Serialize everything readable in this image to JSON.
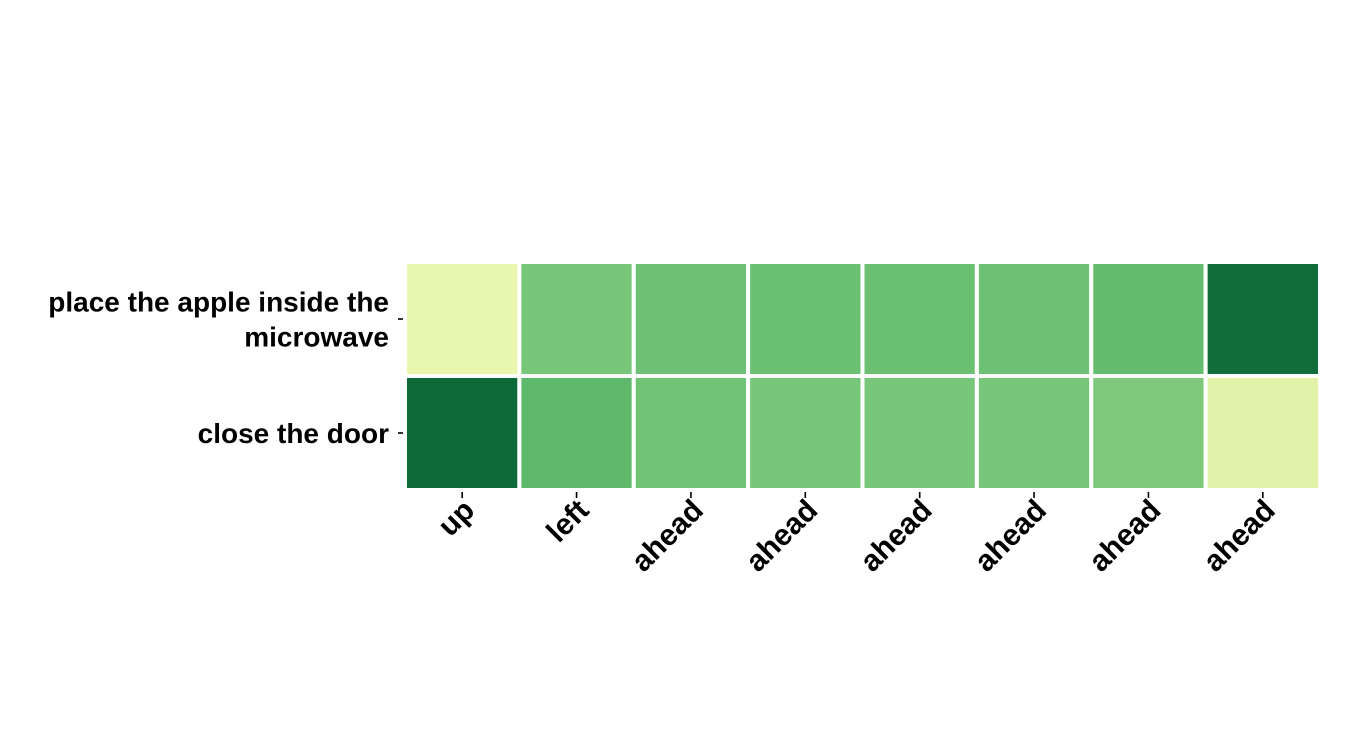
{
  "chart_data": {
    "type": "heatmap",
    "rows": [
      [
        "place the apple inside the",
        "microwave"
      ],
      [
        "close the door"
      ]
    ],
    "columns": [
      "up",
      "left",
      "ahead",
      "ahead",
      "ahead",
      "ahead",
      "ahead",
      "ahead"
    ],
    "values": [
      [
        0.08,
        0.5,
        0.53,
        0.54,
        0.54,
        0.53,
        0.56,
        0.92
      ],
      [
        0.94,
        0.58,
        0.52,
        0.5,
        0.5,
        0.5,
        0.48,
        0.13
      ]
    ],
    "colormap": [
      "#f7fcb9",
      "#d9f0a3",
      "#addd8e",
      "#78c679",
      "#41ab5d",
      "#238443",
      "#005a32"
    ],
    "value_range": [
      0,
      1
    ],
    "gap_color": "#ffffff",
    "colorbar": false,
    "title": "",
    "xlabel": "",
    "ylabel": ""
  }
}
